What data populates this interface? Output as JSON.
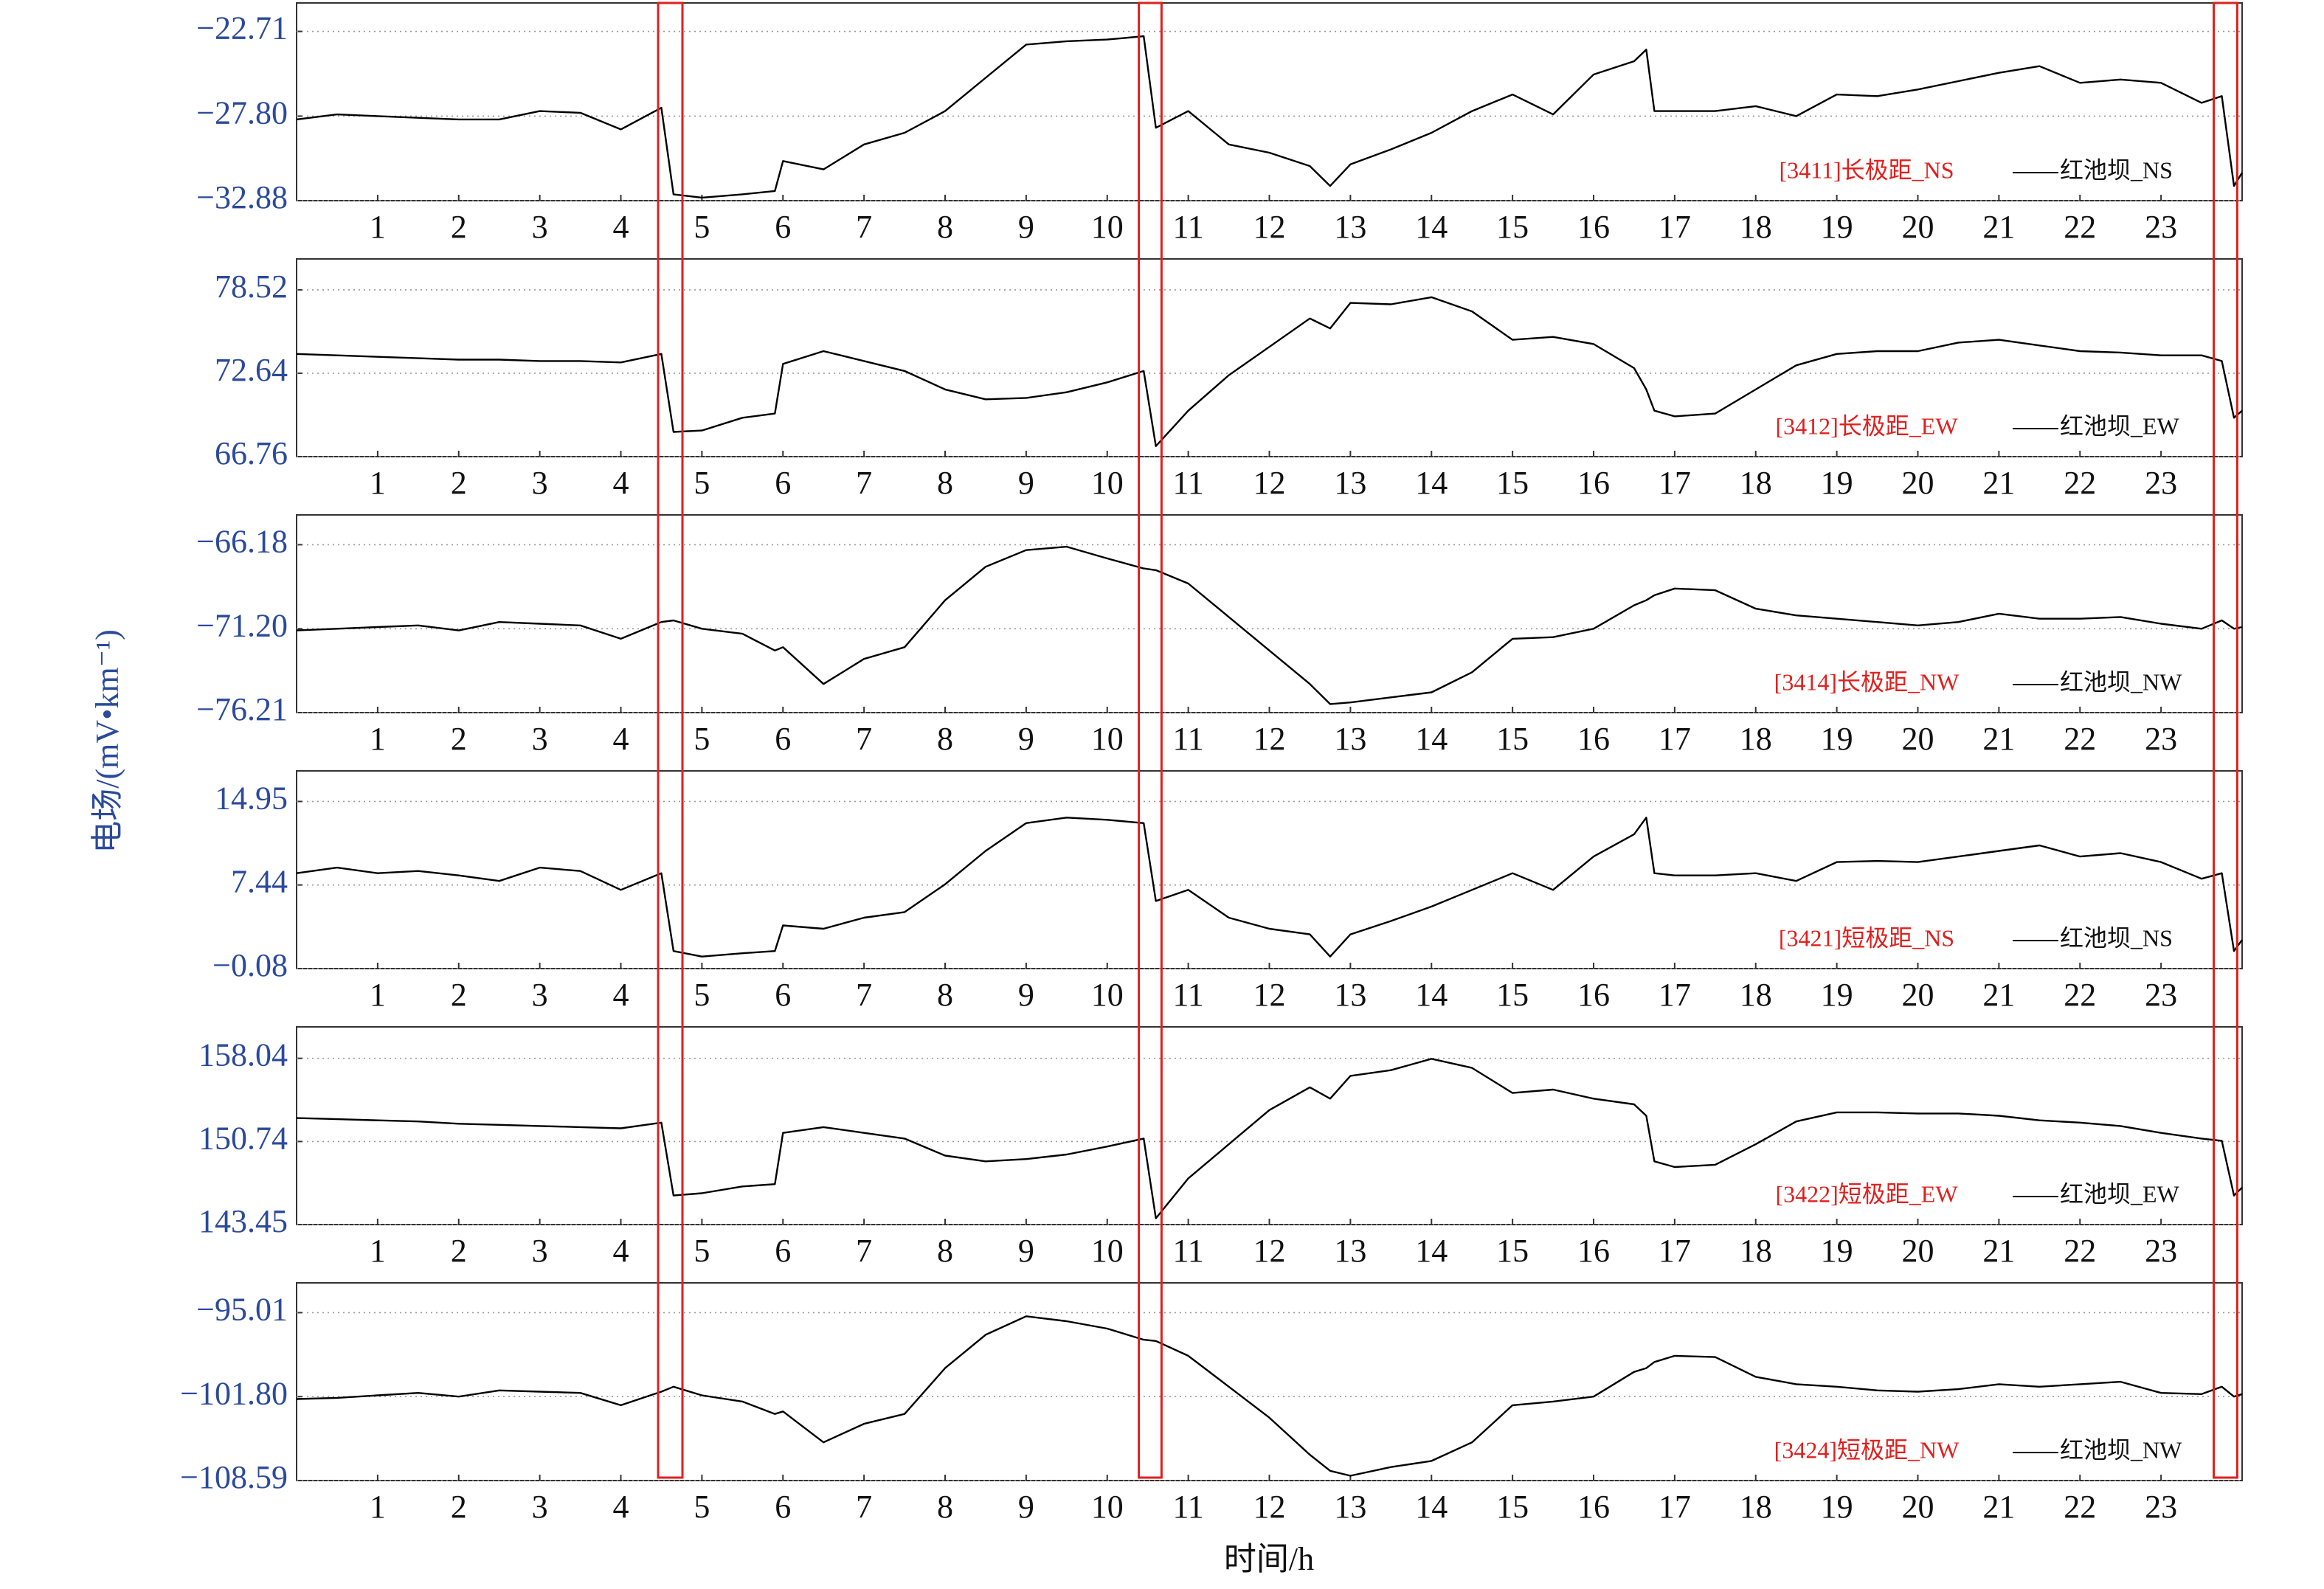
{
  "ylabel": "电场/(mV•km⁻¹)",
  "xlabel": "时间/h",
  "highlight_color": "#e0201e",
  "highlights": [
    [
      4.46,
      4.76
    ],
    [
      10.39,
      10.67
    ],
    [
      23.65,
      23.94
    ]
  ],
  "chart_data": [
    {
      "type": "line",
      "label": "[3411]长极距_NS",
      "label_color": "#e0201e",
      "xlim": [
        0,
        24
      ],
      "ylim": [
        -32.88,
        -21.0
      ],
      "grid": true,
      "xticks": [
        1,
        2,
        3,
        4,
        5,
        6,
        7,
        8,
        9,
        10,
        11,
        12,
        13,
        14,
        15,
        16,
        17,
        18,
        19,
        20,
        21,
        22,
        23
      ],
      "yticks": [
        {
          "value": -22.71,
          "label": "−22.71"
        },
        {
          "value": -27.8,
          "label": "−27.80"
        },
        {
          "value": -32.88,
          "label": "−32.88"
        }
      ],
      "x": [
        0,
        0.5,
        1,
        1.5,
        2,
        2.5,
        3,
        3.5,
        4,
        4.5,
        4.65,
        5,
        5.5,
        5.9,
        6,
        6.5,
        7,
        7.5,
        8,
        8.5,
        9,
        9.5,
        10,
        10.45,
        10.6,
        11,
        11.5,
        12,
        12.5,
        12.75,
        13,
        13.5,
        14,
        14.5,
        15,
        15.5,
        16,
        16.5,
        16.65,
        16.75,
        17,
        17.5,
        18,
        18.5,
        19,
        19.5,
        20,
        20.5,
        21,
        21.5,
        22,
        22.5,
        23,
        23.5,
        23.75,
        23.9,
        24
      ],
      "series": [
        {
          "name": "红池坝_NS",
          "color": "#000000",
          "values": [
            -28.0,
            -27.7,
            -27.8,
            -27.9,
            -28.0,
            -28.0,
            -27.5,
            -27.6,
            -28.6,
            -27.3,
            -32.5,
            -32.7,
            -32.5,
            -32.3,
            -30.5,
            -31.0,
            -29.5,
            -28.8,
            -27.5,
            -25.5,
            -23.5,
            -23.3,
            -23.2,
            -23.0,
            -28.5,
            -27.5,
            -29.5,
            -30.0,
            -30.8,
            -32.0,
            -30.7,
            -29.8,
            -28.8,
            -27.5,
            -26.5,
            -27.7,
            -25.3,
            -24.5,
            -23.8,
            -27.5,
            -27.5,
            -27.5,
            -27.2,
            -27.8,
            -26.5,
            -26.6,
            -26.2,
            -25.7,
            -25.2,
            -24.8,
            -25.8,
            -25.6,
            -25.8,
            -27.0,
            -26.6,
            -32.0,
            -31.2
          ]
        }
      ]
    },
    {
      "type": "line",
      "label": "[3412]长极距_EW",
      "label_color": "#e0201e",
      "xlim": [
        0,
        24
      ],
      "ylim": [
        66.76,
        80.7
      ],
      "grid": true,
      "xticks": [
        1,
        2,
        3,
        4,
        5,
        6,
        7,
        8,
        9,
        10,
        11,
        12,
        13,
        14,
        15,
        16,
        17,
        18,
        19,
        20,
        21,
        22,
        23
      ],
      "yticks": [
        78.52,
        72.64,
        66.76
      ],
      "x": [
        0,
        0.5,
        1,
        1.5,
        2,
        2.5,
        3,
        3.5,
        4,
        4.5,
        4.65,
        5,
        5.5,
        5.9,
        6,
        6.5,
        7,
        7.5,
        8,
        8.5,
        9,
        9.5,
        10,
        10.45,
        10.6,
        11,
        11.5,
        12,
        12.5,
        12.75,
        13,
        13.5,
        14,
        14.5,
        15,
        15.5,
        16,
        16.5,
        16.65,
        16.75,
        17,
        17.5,
        18,
        18.5,
        19,
        19.5,
        20,
        20.5,
        21,
        21.5,
        22,
        22.5,
        23,
        23.5,
        23.75,
        23.9,
        24
      ],
      "series": [
        {
          "name": "红池坝_EW",
          "color": "#000000",
          "values": [
            74.0,
            73.9,
            73.8,
            73.7,
            73.6,
            73.6,
            73.5,
            73.5,
            73.4,
            74.0,
            68.5,
            68.6,
            69.5,
            69.8,
            73.3,
            74.2,
            73.5,
            72.8,
            71.5,
            70.8,
            70.9,
            71.3,
            72.0,
            72.8,
            67.5,
            70.0,
            72.5,
            74.5,
            76.5,
            75.8,
            77.6,
            77.5,
            78.0,
            77.0,
            75.0,
            75.2,
            74.7,
            73.0,
            71.5,
            70.0,
            69.6,
            69.8,
            71.5,
            73.2,
            74.0,
            74.2,
            74.2,
            74.8,
            75.0,
            74.6,
            74.2,
            74.1,
            73.9,
            73.9,
            73.5,
            69.5,
            70.0
          ]
        }
      ]
    },
    {
      "type": "line",
      "label": "[3414]长极距_NW",
      "label_color": "#e0201e",
      "xlim": [
        0,
        24
      ],
      "ylim": [
        -76.21,
        -64.4
      ],
      "grid": true,
      "xticks": [
        1,
        2,
        3,
        4,
        5,
        6,
        7,
        8,
        9,
        10,
        11,
        12,
        13,
        14,
        15,
        16,
        17,
        18,
        19,
        20,
        21,
        22,
        23
      ],
      "yticks": [
        {
          "value": -66.18,
          "label": "−66.18"
        },
        {
          "value": -71.2,
          "label": "−71.20"
        },
        {
          "value": -76.21,
          "label": "−76.21"
        }
      ],
      "x": [
        0,
        0.5,
        1,
        1.5,
        2,
        2.5,
        3,
        3.5,
        4,
        4.5,
        4.65,
        5,
        5.5,
        5.9,
        6,
        6.5,
        7,
        7.5,
        8,
        8.5,
        9,
        9.5,
        10,
        10.45,
        10.6,
        11,
        11.5,
        12,
        12.5,
        12.75,
        13,
        13.5,
        14,
        14.5,
        15,
        15.5,
        16,
        16.5,
        16.65,
        16.75,
        17,
        17.5,
        18,
        18.5,
        19,
        19.5,
        20,
        20.5,
        21,
        21.5,
        22,
        22.5,
        23,
        23.5,
        23.75,
        23.9,
        24
      ],
      "series": [
        {
          "name": "红池坝_NW",
          "color": "#000000",
          "values": [
            -71.3,
            -71.2,
            -71.1,
            -71.0,
            -71.3,
            -70.8,
            -70.9,
            -71.0,
            -71.8,
            -70.8,
            -70.7,
            -71.2,
            -71.5,
            -72.5,
            -72.3,
            -74.5,
            -73.0,
            -72.3,
            -69.5,
            -67.5,
            -66.5,
            -66.3,
            -67.0,
            -67.6,
            -67.7,
            -68.5,
            -70.5,
            -72.5,
            -74.5,
            -75.7,
            -75.6,
            -75.3,
            -75.0,
            -73.8,
            -71.8,
            -71.7,
            -71.2,
            -69.8,
            -69.5,
            -69.2,
            -68.8,
            -68.9,
            -70.0,
            -70.4,
            -70.6,
            -70.8,
            -71.0,
            -70.8,
            -70.3,
            -70.6,
            -70.6,
            -70.5,
            -70.9,
            -71.2,
            -70.7,
            -71.2,
            -71.1
          ]
        }
      ]
    },
    {
      "type": "line",
      "label": "[3421]短极距_NS",
      "label_color": "#e0201e",
      "xlim": [
        0,
        24
      ],
      "ylim": [
        -0.08,
        17.7
      ],
      "grid": true,
      "xticks": [
        1,
        2,
        3,
        4,
        5,
        6,
        7,
        8,
        9,
        10,
        11,
        12,
        13,
        14,
        15,
        16,
        17,
        18,
        19,
        20,
        21,
        22,
        23
      ],
      "yticks": [
        14.95,
        7.44,
        {
          "value": -0.08,
          "label": "−0.08"
        }
      ],
      "x": [
        0,
        0.5,
        1,
        1.5,
        2,
        2.5,
        3,
        3.5,
        4,
        4.5,
        4.65,
        5,
        5.5,
        5.9,
        6,
        6.5,
        7,
        7.5,
        8,
        8.5,
        9,
        9.5,
        10,
        10.45,
        10.6,
        11,
        11.5,
        12,
        12.5,
        12.75,
        13,
        13.5,
        14,
        14.5,
        15,
        15.5,
        16,
        16.5,
        16.65,
        16.75,
        17,
        17.5,
        18,
        18.5,
        19,
        19.5,
        20,
        20.5,
        21,
        21.5,
        22,
        22.5,
        23,
        23.5,
        23.75,
        23.9,
        24
      ],
      "series": [
        {
          "name": "红池坝_NS",
          "color": "#000000",
          "values": [
            8.5,
            9.0,
            8.5,
            8.7,
            8.3,
            7.8,
            9.0,
            8.7,
            7.0,
            8.5,
            1.5,
            1.0,
            1.3,
            1.5,
            3.8,
            3.5,
            4.5,
            5.0,
            7.5,
            10.5,
            13.0,
            13.5,
            13.3,
            13.0,
            6.0,
            7.0,
            4.5,
            3.5,
            3.0,
            1.0,
            3.0,
            4.2,
            5.5,
            7.0,
            8.5,
            7.0,
            10.0,
            12.0,
            13.5,
            8.5,
            8.3,
            8.3,
            8.5,
            7.8,
            9.5,
            9.6,
            9.5,
            10.0,
            10.5,
            11.0,
            10.0,
            10.3,
            9.5,
            8.0,
            8.5,
            1.5,
            2.5
          ]
        }
      ]
    },
    {
      "type": "line",
      "label": "[3422]短极距_EW",
      "label_color": "#e0201e",
      "xlim": [
        0,
        24
      ],
      "ylim": [
        143.45,
        160.8
      ],
      "grid": true,
      "xticks": [
        1,
        2,
        3,
        4,
        5,
        6,
        7,
        8,
        9,
        10,
        11,
        12,
        13,
        14,
        15,
        16,
        17,
        18,
        19,
        20,
        21,
        22,
        23
      ],
      "yticks": [
        158.04,
        150.74,
        143.45
      ],
      "x": [
        0,
        0.5,
        1,
        1.5,
        2,
        2.5,
        3,
        3.5,
        4,
        4.5,
        4.65,
        5,
        5.5,
        5.9,
        6,
        6.5,
        7,
        7.5,
        8,
        8.5,
        9,
        9.5,
        10,
        10.45,
        10.6,
        11,
        11.5,
        12,
        12.5,
        12.75,
        13,
        13.5,
        14,
        14.5,
        15,
        15.5,
        16,
        16.5,
        16.65,
        16.75,
        17,
        17.5,
        18,
        18.5,
        19,
        19.5,
        20,
        20.5,
        21,
        21.5,
        22,
        22.5,
        23,
        23.5,
        23.75,
        23.9,
        24
      ],
      "series": [
        {
          "name": "红池坝_EW",
          "color": "#000000",
          "values": [
            152.8,
            152.7,
            152.6,
            152.5,
            152.3,
            152.2,
            152.1,
            152.0,
            151.9,
            152.4,
            146.0,
            146.2,
            146.8,
            147.0,
            151.5,
            152.0,
            151.5,
            151.0,
            149.5,
            149.0,
            149.2,
            149.6,
            150.3,
            151.0,
            144.0,
            147.5,
            150.5,
            153.5,
            155.5,
            154.5,
            156.5,
            157.0,
            158.0,
            157.2,
            155.0,
            155.3,
            154.5,
            154.0,
            153.0,
            149.0,
            148.5,
            148.7,
            150.5,
            152.5,
            153.3,
            153.3,
            153.2,
            153.2,
            153.0,
            152.6,
            152.4,
            152.1,
            151.5,
            151.0,
            150.8,
            146.0,
            146.7
          ]
        }
      ]
    },
    {
      "type": "line",
      "label": "[3424]短极距_NW",
      "label_color": "#e0201e",
      "xlim": [
        0,
        24
      ],
      "ylim": [
        -108.59,
        -92.6
      ],
      "grid": true,
      "xticks": [
        1,
        2,
        3,
        4,
        5,
        6,
        7,
        8,
        9,
        10,
        11,
        12,
        13,
        14,
        15,
        16,
        17,
        18,
        19,
        20,
        21,
        22,
        23
      ],
      "yticks": [
        {
          "value": -95.01,
          "label": "−95.01"
        },
        {
          "value": -101.8,
          "label": "−101.80"
        },
        {
          "value": -108.59,
          "label": "−108.59"
        }
      ],
      "x": [
        0,
        0.5,
        1,
        1.5,
        2,
        2.5,
        3,
        3.5,
        4,
        4.5,
        4.65,
        5,
        5.5,
        5.9,
        6,
        6.5,
        7,
        7.5,
        8,
        8.5,
        9,
        9.5,
        10,
        10.45,
        10.6,
        11,
        11.5,
        12,
        12.5,
        12.75,
        13,
        13.5,
        14,
        14.5,
        15,
        15.5,
        16,
        16.5,
        16.65,
        16.75,
        17,
        17.5,
        18,
        18.5,
        19,
        19.5,
        20,
        20.5,
        21,
        21.5,
        22,
        22.5,
        23,
        23.5,
        23.75,
        23.9,
        24
      ],
      "series": [
        {
          "name": "红池坝_NW",
          "color": "#000000",
          "values": [
            -102.0,
            -101.9,
            -101.7,
            -101.5,
            -101.8,
            -101.3,
            -101.4,
            -101.5,
            -102.5,
            -101.4,
            -101.0,
            -101.7,
            -102.2,
            -103.2,
            -103.0,
            -105.5,
            -104.0,
            -103.2,
            -99.5,
            -96.8,
            -95.3,
            -95.7,
            -96.3,
            -97.2,
            -97.3,
            -98.5,
            -101.0,
            -103.5,
            -106.5,
            -107.8,
            -108.2,
            -107.5,
            -107.0,
            -105.5,
            -102.5,
            -102.2,
            -101.8,
            -99.8,
            -99.5,
            -99.0,
            -98.5,
            -98.6,
            -100.2,
            -100.8,
            -101.0,
            -101.3,
            -101.4,
            -101.2,
            -100.8,
            -101.0,
            -100.8,
            -100.6,
            -101.5,
            -101.6,
            -101.0,
            -101.8,
            -101.6
          ]
        }
      ]
    }
  ]
}
